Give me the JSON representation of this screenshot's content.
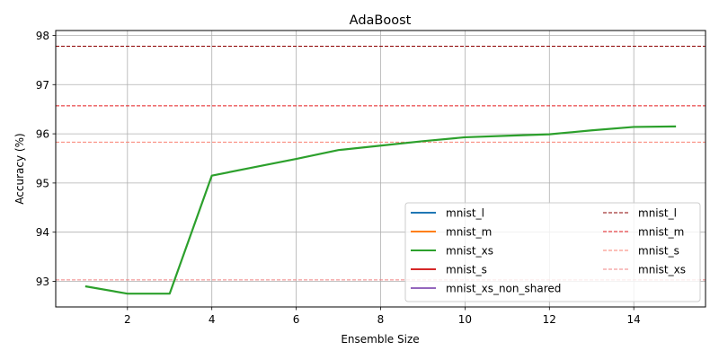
{
  "chart_data": {
    "type": "line",
    "title": "AdaBoost",
    "xlabel": "Ensemble Size",
    "ylabel": "Accuracy (%)",
    "xlim": [
      0.3,
      15.7
    ],
    "ylim": [
      92.48,
      98.1
    ],
    "xticks": [
      "2",
      "4",
      "6",
      "8",
      "10",
      "12",
      "14"
    ],
    "yticks": [
      "93",
      "94",
      "95",
      "96",
      "97",
      "98"
    ],
    "grid": true,
    "legend_position": "lower right",
    "legend_columns": 2,
    "series": [
      {
        "name": "mnist_l",
        "color": "#1f77b4",
        "x": [],
        "y": []
      },
      {
        "name": "mnist_m",
        "color": "#ff7f0e",
        "x": [],
        "y": []
      },
      {
        "name": "mnist_xs",
        "color": "#2ca02c",
        "x": [
          1,
          2,
          3,
          4,
          5,
          6,
          7,
          8,
          9,
          10,
          11,
          12,
          13,
          14,
          15
        ],
        "y": [
          92.9,
          92.75,
          92.75,
          95.15,
          95.32,
          95.49,
          95.67,
          95.76,
          95.85,
          95.93,
          95.96,
          95.99,
          96.07,
          96.14,
          96.15
        ]
      },
      {
        "name": "mnist_s",
        "color": "#d62728",
        "x": [],
        "y": []
      },
      {
        "name": "mnist_xs_non_shared",
        "color": "#9467bd",
        "x": [],
        "y": []
      }
    ],
    "reference_lines": [
      {
        "name": "mnist_l",
        "color": "#8b0000",
        "y": 97.78
      },
      {
        "name": "mnist_m",
        "color": "#e31a1c",
        "y": 96.57
      },
      {
        "name": "mnist_s",
        "color": "#fa8072",
        "y": 95.83
      },
      {
        "name": "mnist_xs",
        "color": "#f08080",
        "y": 93.03
      }
    ]
  }
}
